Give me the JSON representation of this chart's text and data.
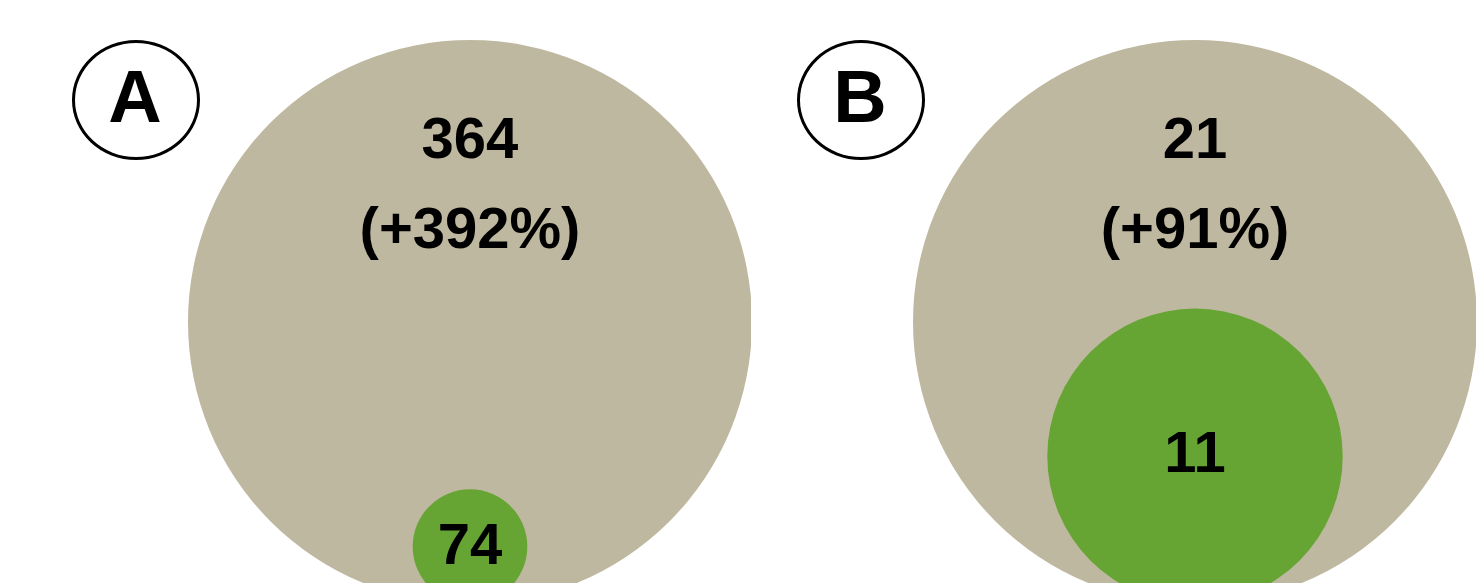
{
  "chart_data": [
    {
      "type": "other",
      "title": "A",
      "categories": [
        null,
        null
      ],
      "values": [
        364,
        74
      ],
      "colors": [
        "#bfb8a0",
        "#66a533"
      ],
      "data_labels": true,
      "annotations": [
        "(+392%)"
      ]
    },
    {
      "type": "other",
      "title": "B",
      "categories": [
        null,
        null
      ],
      "values": [
        21,
        11
      ],
      "colors": [
        "#bfb8a0",
        "#66a533"
      ],
      "data_labels": true,
      "annotations": [
        "(+91%)"
      ]
    }
  ]
}
